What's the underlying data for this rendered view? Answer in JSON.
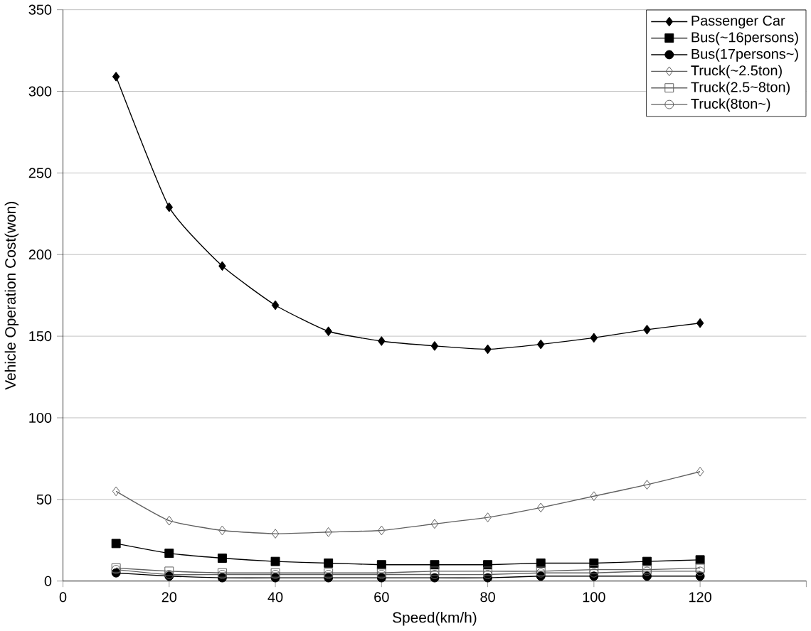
{
  "chart_data": {
    "type": "line",
    "xlabel": "Speed(km/h)",
    "ylabel": "Vehicle Operation Cost(won)",
    "x": [
      10,
      20,
      30,
      40,
      50,
      60,
      70,
      80,
      90,
      100,
      110,
      120
    ],
    "series": [
      {
        "name": "Passenger Car",
        "color": "#000000",
        "marker": "diamond",
        "values": [
          309,
          229,
          193,
          169,
          153,
          147,
          144,
          142,
          145,
          149,
          154,
          158
        ]
      },
      {
        "name": "Bus(~16persons)",
        "color": "#000000",
        "marker": "square",
        "values": [
          23,
          17,
          14,
          12,
          11,
          10,
          10,
          10,
          11,
          11,
          12,
          13
        ]
      },
      {
        "name": "Bus(17persons~)",
        "color": "#000000",
        "marker": "circle",
        "values": [
          5,
          3,
          2,
          2,
          2,
          2,
          2,
          2,
          3,
          3,
          3,
          3
        ]
      },
      {
        "name": "Truck(~2.5ton)",
        "color": "#606060",
        "marker": "diamond",
        "values": [
          55,
          37,
          31,
          29,
          30,
          31,
          35,
          39,
          45,
          52,
          59,
          67
        ]
      },
      {
        "name": "Truck(2.5~8ton)",
        "color": "#606060",
        "marker": "square",
        "values": [
          8,
          6,
          5,
          5,
          5,
          5,
          6,
          6,
          6,
          7,
          7,
          8
        ]
      },
      {
        "name": "Truck(8ton~)",
        "color": "#606060",
        "marker": "circle",
        "values": [
          7,
          4,
          4,
          4,
          4,
          4,
          4,
          4,
          5,
          5,
          6,
          6
        ]
      }
    ],
    "xlim": [
      0,
      140
    ],
    "xticks": [
      0,
      20,
      40,
      60,
      80,
      100,
      120,
      {
        "value": 140,
        "label": null
      }
    ],
    "ylim": [
      0,
      350
    ],
    "yticks": [
      0,
      50,
      100,
      150,
      200,
      250,
      300,
      350
    ],
    "grid": "y",
    "legend": "top right"
  }
}
